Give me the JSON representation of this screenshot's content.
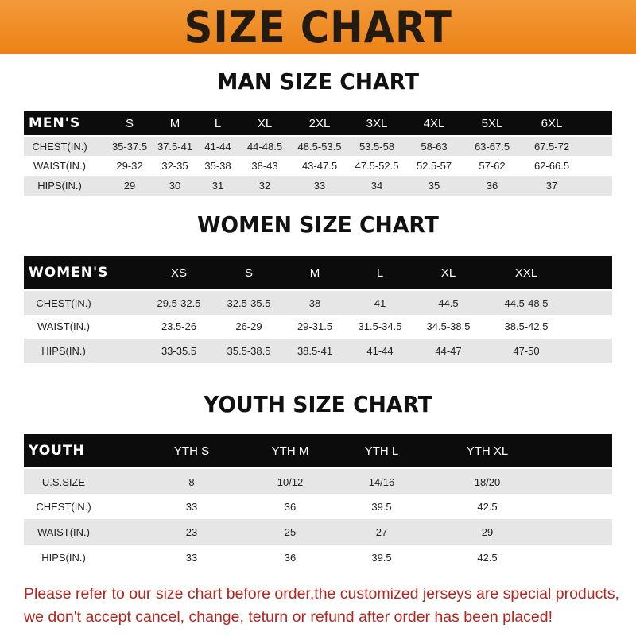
{
  "banner": {
    "title": "SIZE CHART",
    "color": "#ec8216"
  },
  "men": {
    "title": "MAN SIZE CHART",
    "header": [
      "MEN'S",
      "S",
      "M",
      "L",
      "XL",
      "2XL",
      "3XL",
      "4XL",
      "5XL",
      "6XL"
    ],
    "rows": [
      [
        "CHEST(IN.)",
        "35-37.5",
        "37.5-41",
        "41-44",
        "44-48.5",
        "48.5-53.5",
        "53.5-58",
        "58-63",
        "63-67.5",
        "67.5-72"
      ],
      [
        "WAIST(IN.)",
        "29-32",
        "32-35",
        "35-38",
        "38-43",
        "43-47.5",
        "47.5-52.5",
        "52.5-57",
        "57-62",
        "62-66.5"
      ],
      [
        "HIPS(IN.)",
        "29",
        "30",
        "31",
        "32",
        "33",
        "34",
        "35",
        "36",
        "37"
      ]
    ]
  },
  "women": {
    "title": "WOMEN SIZE CHART",
    "header": [
      "WOMEN'S",
      "XS",
      "S",
      "M",
      "L",
      "XL",
      "XXL"
    ],
    "rows": [
      [
        "CHEST(IN.)",
        "29.5-32.5",
        "32.5-35.5",
        "38",
        "41",
        "44.5",
        "44.5-48.5"
      ],
      [
        "WAIST(IN.)",
        "23.5-26",
        "26-29",
        "29-31.5",
        "31.5-34.5",
        "34.5-38.5",
        "38.5-42.5"
      ],
      [
        "HIPS(IN.)",
        "33-35.5",
        "35.5-38.5",
        "38.5-41",
        "41-44",
        "44-47",
        "47-50"
      ]
    ]
  },
  "youth": {
    "title": "YOUTH SIZE CHART",
    "header": [
      "YOUTH",
      "YTH S",
      "YTH M",
      "YTH L",
      "YTH XL"
    ],
    "rows": [
      [
        "U.S.SIZE",
        "8",
        "10/12",
        "14/16",
        "18/20"
      ],
      [
        "CHEST(IN.)",
        "33",
        "36",
        "39.5",
        "42.5"
      ],
      [
        "WAIST(IN.)",
        "23",
        "25",
        "27",
        "29"
      ],
      [
        "HIPS(IN.)",
        "33",
        "36",
        "39.5",
        "42.5"
      ]
    ]
  },
  "note": {
    "line1": "Please refer to our size chart before order,the customized jerseys are special products,",
    "line2": "we don't accept cancel, change, teturn or refund after order has been placed!",
    "color": "#b3261e"
  }
}
